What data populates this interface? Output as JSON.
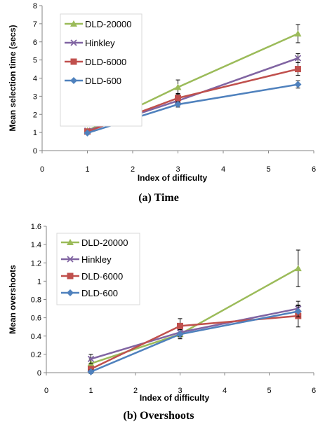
{
  "chart_data": [
    {
      "type": "line",
      "xlabel": "Index of difficulty",
      "ylabel": "Mean selection time (secs)",
      "caption": "(a) Time",
      "xlim": [
        0,
        6
      ],
      "ylim": [
        0,
        8
      ],
      "x_ticks": [
        "0",
        "1",
        "2",
        "3",
        "4",
        "5",
        "6"
      ],
      "y_ticks": [
        "0",
        "1",
        "2",
        "3",
        "4",
        "5",
        "6",
        "7",
        "8"
      ],
      "grid": false,
      "legend_position": "top-left",
      "x": [
        1,
        3,
        5.65
      ],
      "series": [
        {
          "name": "DLD-20000",
          "color": "#9bbb59",
          "marker": "triangle",
          "values": [
            1.1,
            3.5,
            6.45
          ],
          "error": [
            0,
            0.4,
            0.5
          ]
        },
        {
          "name": "Hinkley",
          "color": "#8064a2",
          "marker": "x",
          "values": [
            1.1,
            2.75,
            5.1
          ],
          "error": [
            0,
            0.25,
            0.25
          ]
        },
        {
          "name": "DLD-6000",
          "color": "#c0504d",
          "marker": "square",
          "values": [
            1.05,
            2.9,
            4.5
          ],
          "error": [
            0,
            0.25,
            0.35
          ]
        },
        {
          "name": "DLD-600",
          "color": "#4f81bd",
          "marker": "diamond",
          "values": [
            0.97,
            2.55,
            3.65
          ],
          "error": [
            0,
            0.15,
            0.2
          ]
        }
      ]
    },
    {
      "type": "line",
      "xlabel": "Index of difficulty",
      "ylabel": "Mean overshoots",
      "caption": "(b) Overshoots",
      "xlim": [
        0,
        6
      ],
      "ylim": [
        0,
        1.6
      ],
      "x_ticks": [
        "0",
        "1",
        "2",
        "3",
        "4",
        "5",
        "6"
      ],
      "y_ticks": [
        "0",
        "0.2",
        "0.4",
        "0.6",
        "0.8",
        "1",
        "1.2",
        "1.4",
        "1.6"
      ],
      "grid": false,
      "legend_position": "top-left",
      "x": [
        1,
        3,
        5.65
      ],
      "series": [
        {
          "name": "DLD-20000",
          "color": "#9bbb59",
          "marker": "triangle",
          "values": [
            0.1,
            0.42,
            1.14
          ],
          "error": [
            0.05,
            0.05,
            0.2
          ]
        },
        {
          "name": "Hinkley",
          "color": "#8064a2",
          "marker": "x",
          "values": [
            0.15,
            0.44,
            0.7
          ],
          "error": [
            0.05,
            0.05,
            0.08
          ]
        },
        {
          "name": "DLD-6000",
          "color": "#c0504d",
          "marker": "square",
          "values": [
            0.04,
            0.51,
            0.62
          ],
          "error": [
            0.03,
            0.08,
            0.12
          ]
        },
        {
          "name": "DLD-600",
          "color": "#4f81bd",
          "marker": "diamond",
          "values": [
            0.01,
            0.42,
            0.67
          ],
          "error": [
            0.02,
            0.05,
            0.06
          ]
        }
      ]
    }
  ]
}
